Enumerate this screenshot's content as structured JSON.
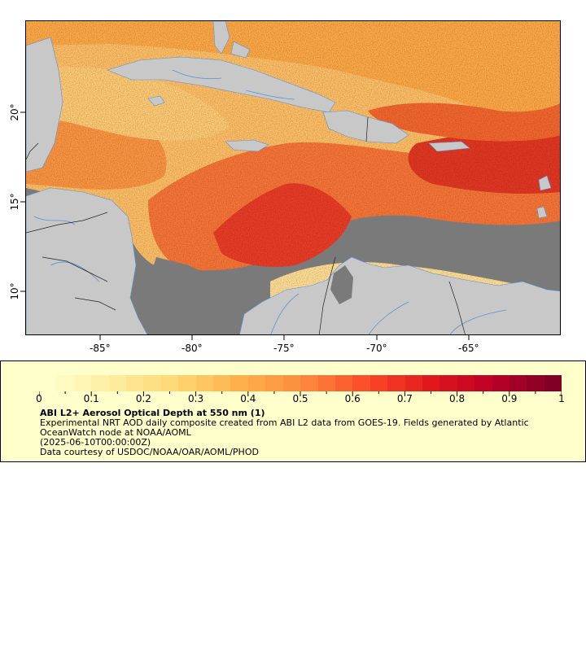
{
  "map": {
    "x_tick_labels": [
      "-85°",
      "-80°",
      "-75°",
      "-70°",
      "-65°"
    ],
    "y_tick_labels": [
      "20°",
      "15°",
      "10°"
    ],
    "colors": {
      "land": "#c8c8c8",
      "ocean_nodata": "#7a7a7a",
      "rivers": "#5a93d6",
      "borders": "#222222"
    }
  },
  "legend": {
    "tick_labels": [
      "0",
      "0.1",
      "0.2",
      "0.3",
      "0.4",
      "0.5",
      "0.6",
      "0.7",
      "0.8",
      "0.9",
      "1"
    ],
    "colorbar_stops": [
      "#ffffcc",
      "#ffeda0",
      "#fed976",
      "#feb24c",
      "#fd8d3c",
      "#fc4e2a",
      "#e31a1c",
      "#bd0026",
      "#800026"
    ],
    "title": "ABI L2+ Aerosol Optical Depth at 550 nm (1)",
    "line1": "Experimental NRT AOD daily composite created from ABI L2 data from GOES-19. Fields generated by Atlantic",
    "line2": "OceanWatch node at NOAA/AOML",
    "line3": "(2025-06-10T00:00:00Z)",
    "line4": "Data courtesy of USDOC/NOAA/OAR/AOML/PHOD"
  }
}
